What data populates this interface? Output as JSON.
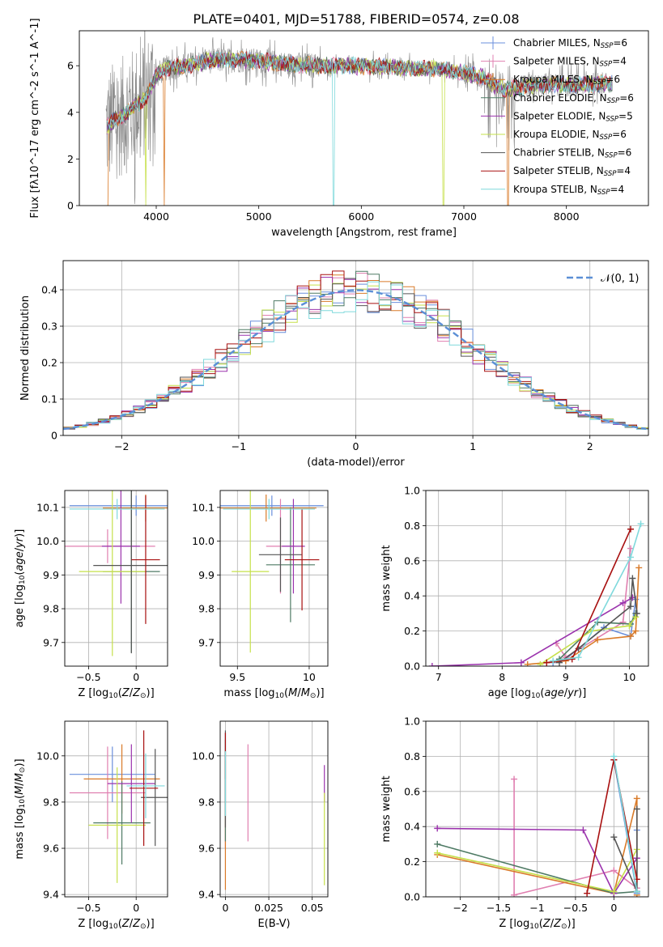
{
  "title": "PLATE=0401, MJD=51788, FIBERID=0574, z=0.08",
  "colors": {
    "chabrier_miles": "#6a8fdc",
    "salpeter_miles": "#e07fb0",
    "kroupa_miles": "#d97a28",
    "chabrier_elodie": "#4e7a64",
    "salpeter_elodie": "#9b33ad",
    "kroupa_elodie": "#c6e04a",
    "chabrier_stelib": "#555555",
    "salpeter_stelib": "#a81010",
    "kroupa_stelib": "#7fd9dc",
    "data_gray": "#888888",
    "gaussian": "#5b8fd6"
  },
  "chart_data": [
    {
      "id": "spectrum",
      "type": "line",
      "xlabel": "wavelength [Angstrom, rest frame]",
      "ylabel": "Flux [f$_\\lambda$10$^{-17}$ erg cm$^{-2}$ s$^{-1}$ A$^{-1}$]",
      "xlim": [
        3250,
        8800
      ],
      "ylim": [
        0,
        7.5
      ],
      "xticks": [
        4000,
        5000,
        6000,
        7000,
        8000
      ],
      "yticks": [
        0,
        2,
        4,
        6
      ],
      "grid": false,
      "legend_position": "right",
      "legend": [
        {
          "name": "Chabrier MILES, N",
          "sub": "SSP",
          "tail": "=6"
        },
        {
          "name": "Salpeter MILES, N",
          "sub": "SSP",
          "tail": "=4"
        },
        {
          "name": "Kroupa MILES, N",
          "sub": "SSP",
          "tail": "=6"
        },
        {
          "name": "Chabrier ELODIE, N",
          "sub": "SSP",
          "tail": "=6"
        },
        {
          "name": "Salpeter ELODIE, N",
          "sub": "SSP",
          "tail": "=5"
        },
        {
          "name": "Kroupa ELODIE, N",
          "sub": "SSP",
          "tail": "=6"
        },
        {
          "name": "Chabrier STELIB, N",
          "sub": "SSP",
          "tail": "=6"
        },
        {
          "name": "Salpeter STELIB, N",
          "sub": "SSP",
          "tail": "=4"
        },
        {
          "name": "Kroupa STELIB, N",
          "sub": "SSP",
          "tail": "=4"
        }
      ],
      "continuum": [
        [
          3500,
          3.3
        ],
        [
          3600,
          3.7
        ],
        [
          3700,
          3.9
        ],
        [
          3800,
          4.3
        ],
        [
          3900,
          4.6
        ],
        [
          4000,
          5.6
        ],
        [
          4100,
          5.9
        ],
        [
          4300,
          6.0
        ],
        [
          4500,
          6.2
        ],
        [
          4800,
          6.25
        ],
        [
          5000,
          6.2
        ],
        [
          5300,
          6.05
        ],
        [
          5600,
          6.0
        ],
        [
          5900,
          6.0
        ],
        [
          6200,
          5.95
        ],
        [
          6500,
          5.9
        ],
        [
          6800,
          5.85
        ],
        [
          7000,
          5.7
        ],
        [
          7200,
          5.5
        ],
        [
          7300,
          5.15
        ],
        [
          7400,
          5.0
        ],
        [
          7600,
          5.1
        ],
        [
          7800,
          5.2
        ],
        [
          8000,
          5.15
        ],
        [
          8200,
          5.2
        ],
        [
          8400,
          5.25
        ]
      ]
    },
    {
      "id": "residuals",
      "type": "histogram",
      "xlabel": "(data-model)/error",
      "ylabel": "Normed distribution",
      "xlim": [
        -2.5,
        2.5
      ],
      "ylim": [
        0,
        0.48
      ],
      "xticks": [
        -2,
        -1,
        0,
        1,
        2
      ],
      "yticks": [
        0.0,
        0.1,
        0.2,
        0.3,
        0.4
      ],
      "grid": true,
      "legend_label": "𝒩(0, 1)",
      "legend_position": "top-right"
    },
    {
      "id": "age-vs-Z",
      "type": "errorbar",
      "xlabel": "Z [log10(Z/Z☉)]",
      "ylabel": "age [log10(age/yr)]",
      "xlim": [
        -0.75,
        0.33
      ],
      "ylim": [
        9.63,
        10.15
      ],
      "xticks": [
        -0.5,
        0.0
      ],
      "yticks": [
        9.7,
        9.8,
        9.9,
        10.0,
        10.1
      ],
      "grid": true,
      "points": [
        {
          "series": "chabrier_miles",
          "x": 0.0,
          "xerr": 0.7,
          "y": 10.105,
          "yerr": 0.03
        },
        {
          "series": "salpeter_miles",
          "x": -0.3,
          "xerr": 0.5,
          "y": 9.985,
          "yerr": 0.05
        },
        {
          "series": "kroupa_miles",
          "x": 0.1,
          "xerr": 0.45,
          "y": 10.098,
          "yerr": 0.04
        },
        {
          "series": "chabrier_elodie",
          "x": -0.05,
          "xerr": 0.3,
          "y": 9.91,
          "yerr": 0.24
        },
        {
          "series": "salpeter_elodie",
          "x": -0.16,
          "xerr": 0.2,
          "y": 9.985,
          "yerr": 0.17
        },
        {
          "series": "kroupa_elodie",
          "x": -0.25,
          "xerr": 0.35,
          "y": 9.91,
          "yerr": 0.25
        },
        {
          "series": "chabrier_stelib",
          "x": -0.05,
          "xerr": 0.4,
          "y": 9.928,
          "yerr": 0.26
        },
        {
          "series": "salpeter_stelib",
          "x": 0.1,
          "xerr": 0.15,
          "y": 9.945,
          "yerr": 0.19
        },
        {
          "series": "kroupa_stelib",
          "x": -0.2,
          "xerr": 0.5,
          "y": 10.095,
          "yerr": 0.03
        }
      ]
    },
    {
      "id": "age-vs-mass",
      "type": "errorbar",
      "xlabel": "mass [log10(M/M☉)]",
      "ylabel": "",
      "xlim": [
        9.38,
        10.13
      ],
      "ylim": [
        9.63,
        10.15
      ],
      "xticks": [
        9.5,
        10.0
      ],
      "yticks": [
        9.7,
        9.8,
        9.9,
        10.0,
        10.1
      ],
      "grid": true,
      "points": [
        {
          "series": "chabrier_miles",
          "x": 9.74,
          "xerr": 0.36,
          "y": 10.105,
          "yerr": 0.03
        },
        {
          "series": "salpeter_miles",
          "x": 9.8,
          "xerr": 0.1,
          "y": 9.985,
          "yerr": 0.14
        },
        {
          "series": "kroupa_miles",
          "x": 9.7,
          "xerr": 0.35,
          "y": 10.098,
          "yerr": 0.04
        },
        {
          "series": "chabrier_elodie",
          "x": 9.87,
          "xerr": 0.17,
          "y": 9.93,
          "yerr": 0.17
        },
        {
          "series": "salpeter_elodie",
          "x": 9.89,
          "xerr": 0.08,
          "y": 9.985,
          "yerr": 0.14
        },
        {
          "series": "kroupa_elodie",
          "x": 9.59,
          "xerr": 0.13,
          "y": 9.91,
          "yerr": 0.24
        },
        {
          "series": "chabrier_stelib",
          "x": 9.8,
          "xerr": 0.15,
          "y": 9.96,
          "yerr": 0.11
        },
        {
          "series": "salpeter_stelib",
          "x": 9.95,
          "xerr": 0.12,
          "y": 9.945,
          "yerr": 0.15
        },
        {
          "series": "kroupa_stelib",
          "x": 9.72,
          "xerr": 0.32,
          "y": 10.095,
          "yerr": 0.03
        }
      ]
    },
    {
      "id": "weight-vs-age",
      "type": "line",
      "xlabel": "age [log10(age/yr)]",
      "ylabel": "mass weight",
      "xlim": [
        6.8,
        10.3
      ],
      "ylim": [
        0.0,
        1.0
      ],
      "xticks": [
        7,
        8,
        9,
        10
      ],
      "yticks": [
        0.0,
        0.2,
        0.4,
        0.6,
        0.8,
        1.0
      ],
      "grid": true,
      "series": [
        {
          "name": "chabrier_miles",
          "points": [
            [
              8.8,
              0.02
            ],
            [
              9.0,
              0.04
            ],
            [
              9.6,
              0.22
            ],
            [
              10.02,
              0.17
            ],
            [
              10.1,
              0.38
            ]
          ]
        },
        {
          "name": "salpeter_miles",
          "points": [
            [
              8.85,
              0.13
            ],
            [
              9.0,
              0.05
            ],
            [
              9.9,
              0.25
            ],
            [
              10.02,
              0.67
            ]
          ]
        },
        {
          "name": "kroupa_miles",
          "points": [
            [
              8.4,
              0.01
            ],
            [
              9.0,
              0.03
            ],
            [
              9.5,
              0.15
            ],
            [
              10.02,
              0.17
            ],
            [
              10.1,
              0.2
            ],
            [
              10.15,
              0.56
            ]
          ]
        },
        {
          "name": "chabrier_elodie",
          "points": [
            [
              8.9,
              0.04
            ],
            [
              9.5,
              0.25
            ],
            [
              10.02,
              0.24
            ],
            [
              10.1,
              0.3
            ]
          ]
        },
        {
          "name": "salpeter_elodie",
          "points": [
            [
              6.9,
              0.0
            ],
            [
              8.3,
              0.02
            ],
            [
              9.9,
              0.36
            ],
            [
              10.05,
              0.39
            ]
          ]
        },
        {
          "name": "kroupa_elodie",
          "points": [
            [
              8.6,
              0.01
            ],
            [
              9.4,
              0.2
            ],
            [
              10.0,
              0.23
            ],
            [
              10.1,
              0.28
            ]
          ]
        },
        {
          "name": "chabrier_stelib",
          "points": [
            [
              8.9,
              0.02
            ],
            [
              9.2,
              0.1
            ],
            [
              10.02,
              0.34
            ],
            [
              10.05,
              0.5
            ],
            [
              10.12,
              0.3
            ]
          ]
        },
        {
          "name": "salpeter_stelib",
          "points": [
            [
              8.7,
              0.02
            ],
            [
              9.1,
              0.04
            ],
            [
              10.02,
              0.78
            ]
          ]
        },
        {
          "name": "kroupa_stelib",
          "points": [
            [
              8.8,
              0.03
            ],
            [
              9.2,
              0.05
            ],
            [
              10.02,
              0.62
            ],
            [
              10.18,
              0.81
            ]
          ]
        }
      ]
    },
    {
      "id": "mass-vs-Z",
      "type": "errorbar",
      "xlabel": "Z [log10(Z/Z☉)]",
      "ylabel": "mass [log10(M/M☉)]",
      "xlim": [
        -0.75,
        0.33
      ],
      "ylim": [
        9.39,
        10.15
      ],
      "xticks": [
        -0.5,
        0.0
      ],
      "yticks": [
        9.4,
        9.6,
        9.8,
        10.0
      ],
      "grid": true,
      "points": [
        {
          "series": "chabrier_miles",
          "x": -0.25,
          "xerr": 0.45,
          "y": 9.92,
          "yerr": 0.12
        },
        {
          "series": "salpeter_miles",
          "x": -0.3,
          "xerr": 0.4,
          "y": 9.84,
          "yerr": 0.2
        },
        {
          "series": "kroupa_miles",
          "x": -0.15,
          "xerr": 0.4,
          "y": 9.9,
          "yerr": 0.15
        },
        {
          "series": "chabrier_elodie",
          "x": -0.15,
          "xerr": 0.3,
          "y": 9.71,
          "yerr": 0.18
        },
        {
          "series": "salpeter_elodie",
          "x": -0.05,
          "xerr": 0.25,
          "y": 9.88,
          "yerr": 0.17
        },
        {
          "series": "kroupa_elodie",
          "x": -0.2,
          "xerr": 0.3,
          "y": 9.7,
          "yerr": 0.25
        },
        {
          "series": "chabrier_stelib",
          "x": 0.2,
          "xerr": 0.15,
          "y": 9.82,
          "yerr": 0.21
        },
        {
          "series": "salpeter_stelib",
          "x": 0.08,
          "xerr": 0.15,
          "y": 9.86,
          "yerr": 0.25
        },
        {
          "series": "kroupa_stelib",
          "x": 0.1,
          "xerr": 0.2,
          "y": 9.87,
          "yerr": 0.14
        }
      ]
    },
    {
      "id": "mass-vs-ebv",
      "type": "errorbar",
      "xlabel": "E(B-V)",
      "ylabel": "",
      "xlim": [
        -0.003,
        0.059
      ],
      "ylim": [
        9.39,
        10.15
      ],
      "xticks": [
        0.0,
        0.025,
        0.05
      ],
      "yticks": [
        9.4,
        9.6,
        9.8,
        10.0
      ],
      "grid": true,
      "points": [
        {
          "series": "chabrier_miles",
          "x": 0.0,
          "xerr": 0,
          "y": 9.95,
          "yerr": 0.15
        },
        {
          "series": "salpeter_miles",
          "x": 0.0,
          "xerr": 0,
          "y": 9.8,
          "yerr": 0.2
        },
        {
          "series": "kroupa_miles",
          "x": 0.0,
          "xerr": 0,
          "y": 9.7,
          "yerr": 0.28
        },
        {
          "series": "chabrier_elodie",
          "x": 0.0,
          "xerr": 0,
          "y": 9.85,
          "yerr": 0.22
        },
        {
          "series": "salpeter_elodie",
          "x": 0.057,
          "xerr": 0,
          "y": 9.88,
          "yerr": 0.08
        },
        {
          "series": "kroupa_elodie",
          "x": 0.057,
          "xerr": 0,
          "y": 9.64,
          "yerr": 0.2
        },
        {
          "series": "chabrier_stelib",
          "x": 0.0,
          "xerr": 0,
          "y": 9.9,
          "yerr": 0.21
        },
        {
          "series": "salpeter_stelib",
          "x": 0.0,
          "xerr": 0,
          "y": 10.0,
          "yerr": 0.1
        },
        {
          "series": "kroupa_stelib",
          "x": 0.0,
          "xerr": 0,
          "y": 9.88,
          "yerr": 0.14
        },
        {
          "series": "salpeter_miles",
          "x": 0.013,
          "xerr": 0,
          "y": 9.84,
          "yerr": 0.21
        }
      ]
    },
    {
      "id": "weight-vs-Z",
      "type": "line",
      "xlabel": "Z [log10(Z/Z☉)]",
      "ylabel": "mass weight",
      "xlim": [
        -2.45,
        0.45
      ],
      "ylim": [
        0.0,
        1.0
      ],
      "xticks": [
        -2.0,
        -1.5,
        -1.0,
        -0.5,
        0.0
      ],
      "yticks": [
        0.0,
        0.2,
        0.4,
        0.6,
        0.8,
        1.0
      ],
      "grid": true,
      "series": [
        {
          "name": "chabrier_miles",
          "points": [
            [
              0.0,
              0.78
            ],
            [
              0.3,
              0.02
            ],
            [
              0.3,
              0.38
            ]
          ]
        },
        {
          "name": "salpeter_miles",
          "points": [
            [
              -1.3,
              0.67
            ],
            [
              -1.3,
              0.01
            ],
            [
              0.0,
              0.15
            ],
            [
              0.3,
              0.05
            ]
          ]
        },
        {
          "name": "kroupa_miles",
          "points": [
            [
              -2.3,
              0.24
            ],
            [
              0.0,
              0.02
            ],
            [
              0.3,
              0.56
            ],
            [
              0.3,
              0.01
            ]
          ]
        },
        {
          "name": "chabrier_elodie",
          "points": [
            [
              -2.3,
              0.3
            ],
            [
              0.0,
              0.02
            ],
            [
              0.3,
              0.03
            ]
          ]
        },
        {
          "name": "salpeter_elodie",
          "points": [
            [
              -2.3,
              0.39
            ],
            [
              -0.4,
              0.38
            ],
            [
              0.0,
              0.02
            ],
            [
              0.3,
              0.22
            ]
          ]
        },
        {
          "name": "kroupa_elodie",
          "points": [
            [
              -2.3,
              0.25
            ],
            [
              0.0,
              0.03
            ],
            [
              0.3,
              0.27
            ]
          ]
        },
        {
          "name": "chabrier_stelib",
          "points": [
            [
              0.0,
              0.34
            ],
            [
              0.3,
              0.03
            ],
            [
              0.3,
              0.5
            ]
          ]
        },
        {
          "name": "salpeter_stelib",
          "points": [
            [
              -0.35,
              0.02
            ],
            [
              0.0,
              0.78
            ],
            [
              0.3,
              0.1
            ]
          ]
        },
        {
          "name": "kroupa_stelib",
          "points": [
            [
              0.0,
              0.8
            ],
            [
              0.3,
              0.03
            ]
          ]
        }
      ]
    }
  ]
}
